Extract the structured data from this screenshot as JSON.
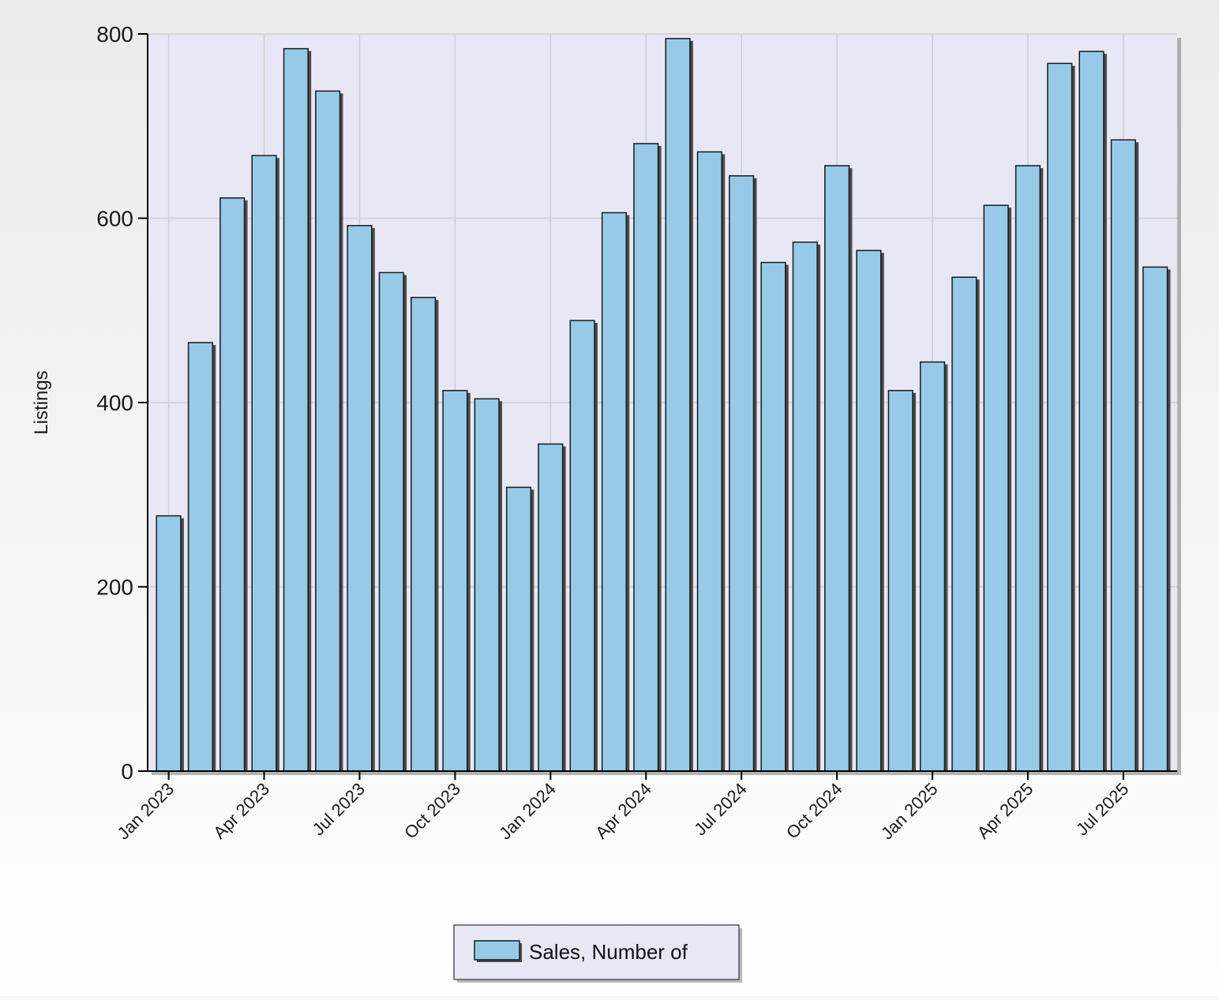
{
  "chart_data": {
    "type": "bar",
    "ylabel": "Listings",
    "ylim": [
      0,
      800
    ],
    "yticks": [
      0,
      200,
      400,
      600,
      800
    ],
    "grid": true,
    "legend_position": "bottom-center",
    "categories": [
      "Jan 2023",
      "Feb 2023",
      "Mar 2023",
      "Apr 2023",
      "May 2023",
      "Jun 2023",
      "Jul 2023",
      "Aug 2023",
      "Sep 2023",
      "Oct 2023",
      "Nov 2023",
      "Dec 2023",
      "Jan 2024",
      "Feb 2024",
      "Mar 2024",
      "Apr 2024",
      "May 2024",
      "Jun 2024",
      "Jul 2024",
      "Aug 2024",
      "Sep 2024",
      "Oct 2024",
      "Nov 2024",
      "Dec 2024",
      "Jan 2025",
      "Feb 2025",
      "Mar 2025",
      "Apr 2025",
      "May 2025",
      "Jun 2025",
      "Jul 2025",
      "Aug 2025"
    ],
    "tick_labels": [
      "Jan 2023",
      "Apr 2023",
      "Jul 2023",
      "Oct 2023",
      "Jan 2024",
      "Apr 2024",
      "Jul 2024",
      "Oct 2024",
      "Jan 2025",
      "Apr 2025",
      "Jul 2025"
    ],
    "series": [
      {
        "name": "Sales, Number of",
        "color": "#97cae8",
        "values": [
          277,
          465,
          622,
          668,
          784,
          738,
          592,
          541,
          514,
          413,
          404,
          308,
          355,
          489,
          606,
          681,
          795,
          672,
          646,
          552,
          574,
          657,
          565,
          413,
          444,
          536,
          614,
          657,
          768,
          781,
          685,
          547
        ]
      }
    ]
  },
  "colors": {
    "plot_bg_top": "#e8e7f5",
    "plot_bg_bottom": "#e8e7f5",
    "page_bg_top": "#ececec",
    "page_bg_bottom": "#fdfdfd",
    "bar_fill": "#97cae8",
    "bar_stroke": "#1a1a1a",
    "shadow": "#4a4a4a",
    "grid": "#cfcfcf",
    "axis": "#000000",
    "legend_bg": "#e8e7f5"
  }
}
